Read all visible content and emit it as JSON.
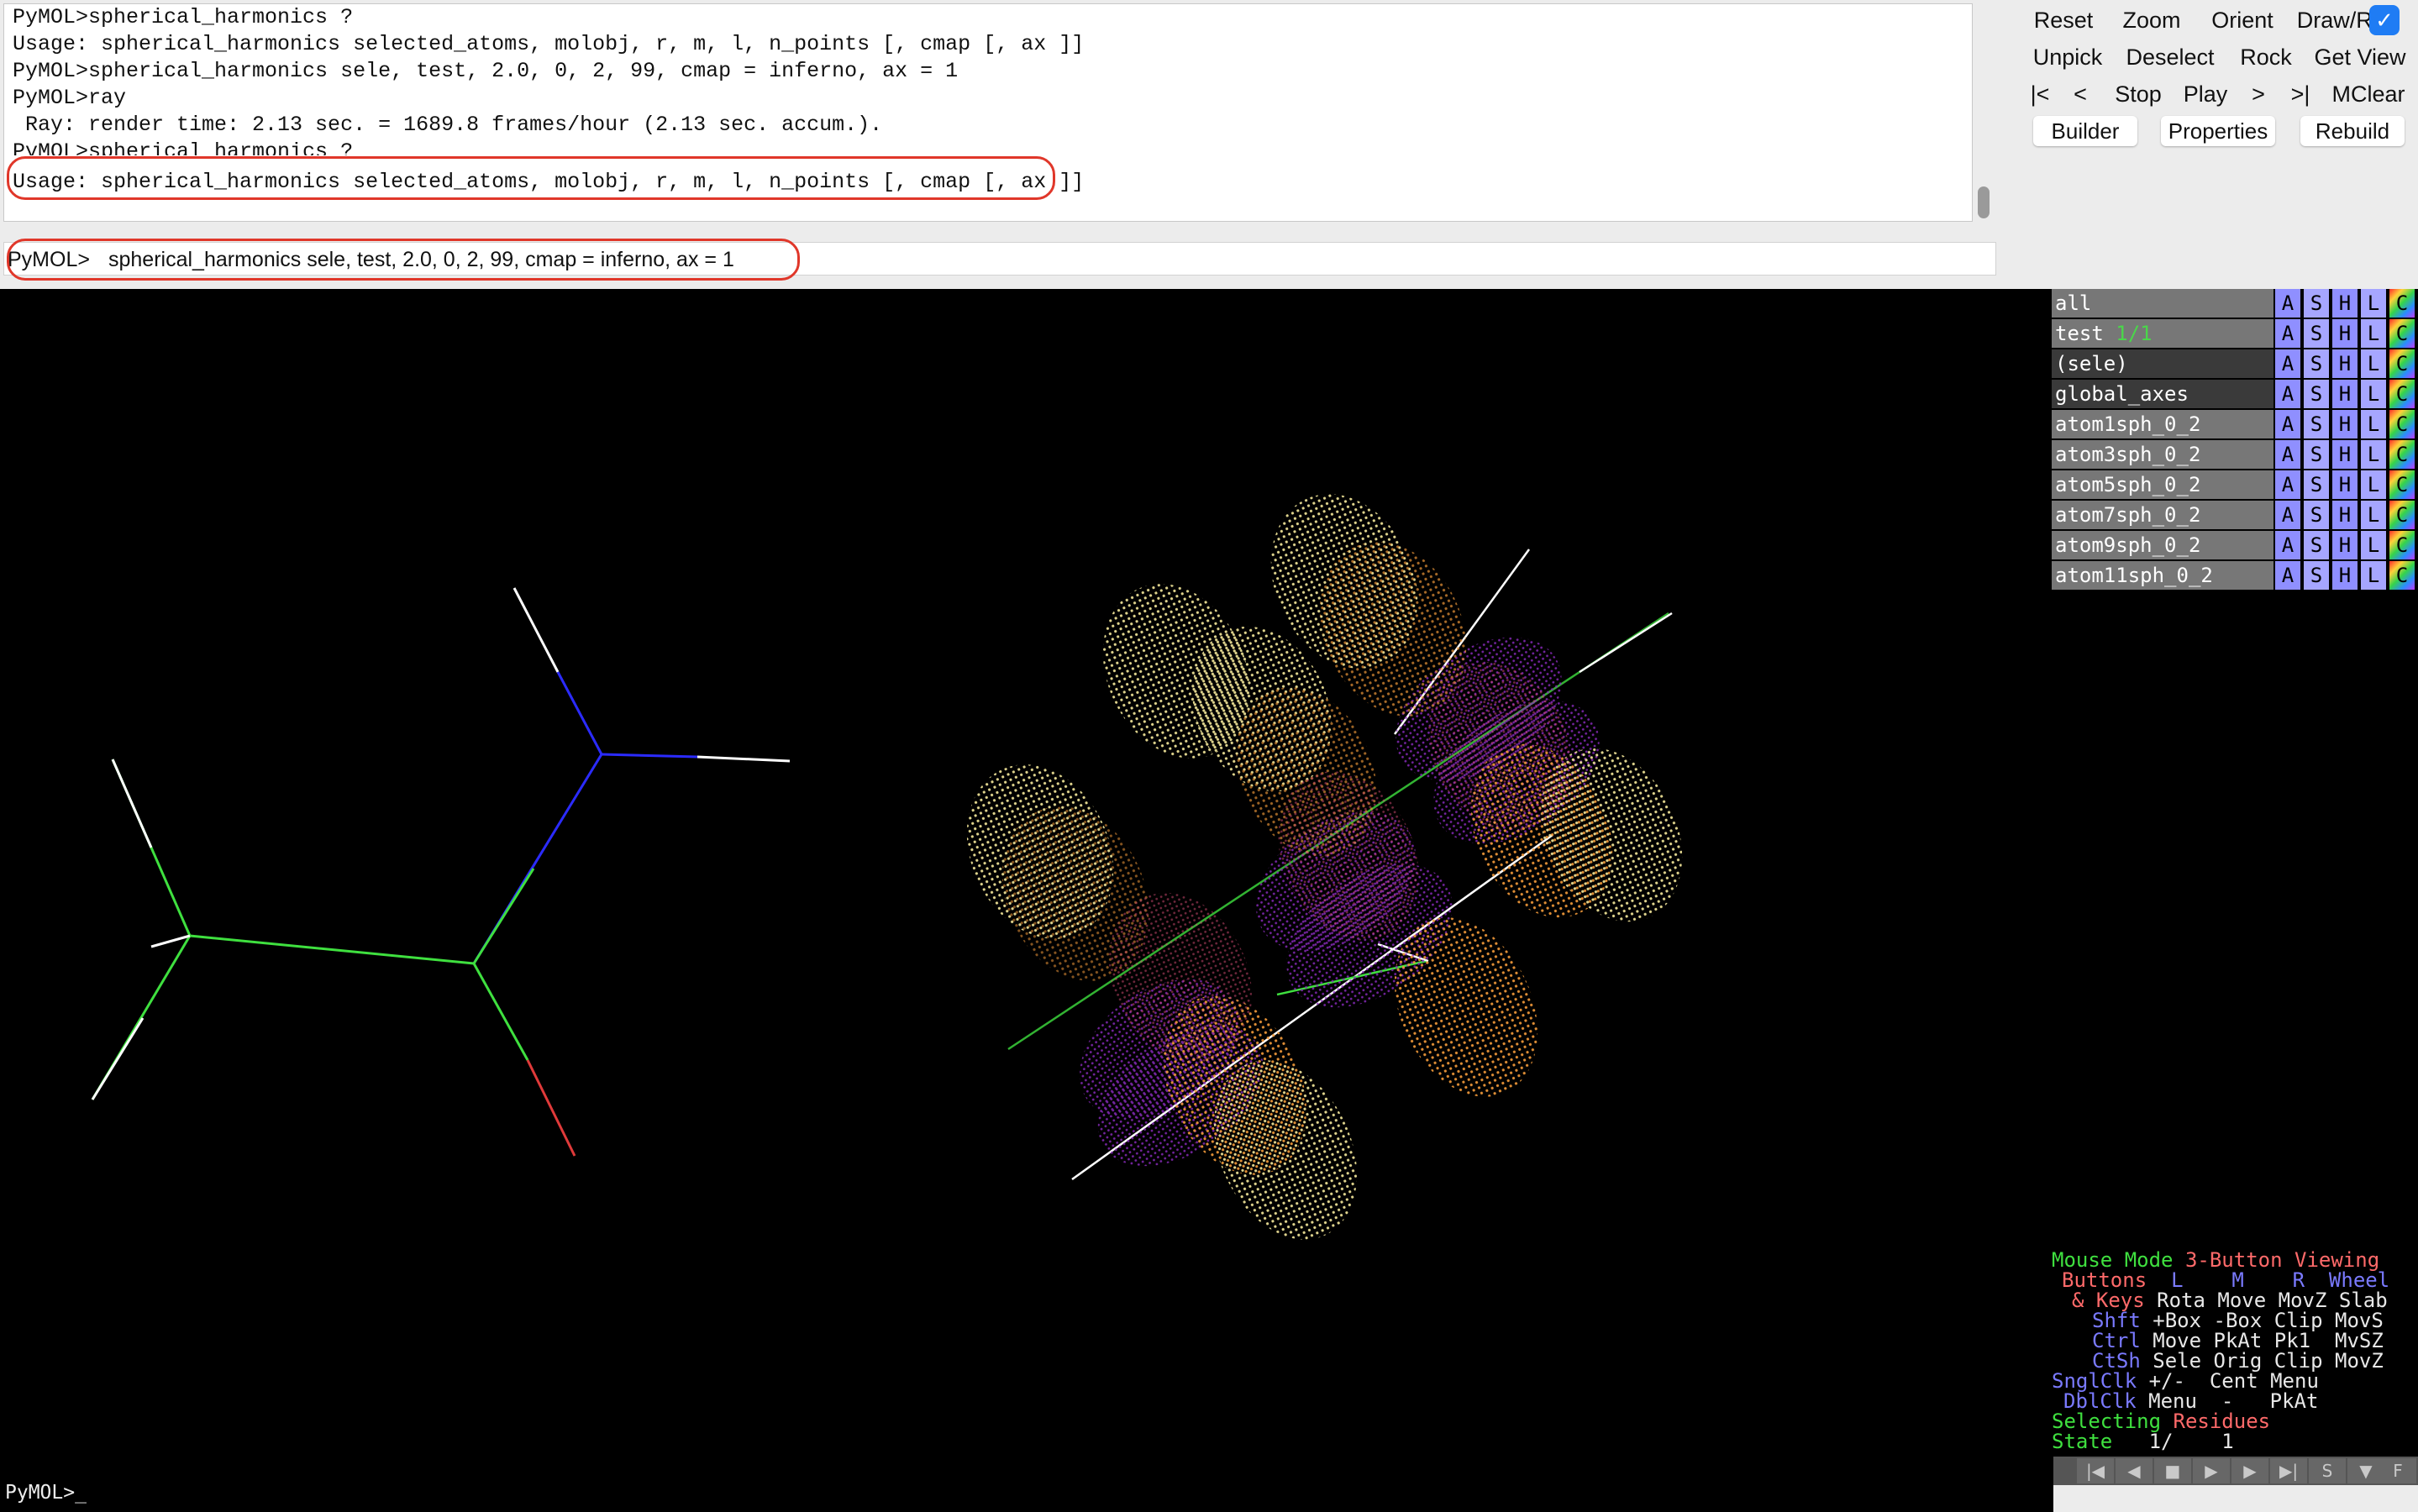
{
  "log": {
    "lines": [
      "PyMOL>spherical_harmonics ?",
      "Usage: spherical_harmonics selected_atoms, molobj, r, m, l, n_points [, cmap [, ax ]]",
      "PyMOL>spherical_harmonics sele, test, 2.0, 0, 2, 99, cmap = inferno, ax = 1",
      "PyMOL>ray",
      " Ray: render time: 2.13 sec. = 1689.8 frames/hour (2.13 sec. accum.).",
      "PyMOL>spherical_harmonics ?",
      "Usage: spherical_harmonics selected_atoms, molobj, r, m, l, n_points [, cmap [, ax ]]"
    ]
  },
  "command": {
    "prompt": "PyMOL>",
    "value": "spherical_harmonics sele, test, 2.0, 0, 2, 99, cmap = inferno, ax = 1"
  },
  "panel": {
    "row1": [
      "Reset",
      "Zoom",
      "Orient",
      "Draw/Ray"
    ],
    "row2": [
      "Unpick",
      "Deselect",
      "Rock",
      "Get View"
    ],
    "row3": [
      "|<",
      "<",
      "Stop",
      "Play",
      ">",
      ">|",
      "MClear"
    ],
    "row4": [
      "Builder",
      "Properties",
      "Rebuild"
    ],
    "toggle_mark": "✓"
  },
  "objects": {
    "rows": [
      {
        "name": "all",
        "state": ""
      },
      {
        "name": "test",
        "state": "1/1"
      },
      {
        "name": "(sele)",
        "state": ""
      },
      {
        "name": "global_axes",
        "state": ""
      },
      {
        "name": "atom1sph_0_2",
        "state": ""
      },
      {
        "name": "atom3sph_0_2",
        "state": ""
      },
      {
        "name": "atom5sph_0_2",
        "state": ""
      },
      {
        "name": "atom7sph_0_2",
        "state": ""
      },
      {
        "name": "atom9sph_0_2",
        "state": ""
      },
      {
        "name": "atom11sph_0_2",
        "state": ""
      }
    ],
    "buttons": [
      "A",
      "S",
      "H",
      "L",
      "C"
    ]
  },
  "mouse_mode": {
    "title_a": "Mouse Mode",
    "title_b": "3-Button Viewing",
    "buttons_label": "Buttons",
    "col_l": "L",
    "col_m": "M",
    "col_r": "R",
    "col_wheel": "Wheel",
    "keys_label": "& Keys",
    "keys_vals": "Rota Move MovZ Slab",
    "shft_label": "Shft",
    "shft_vals": "+Box -Box Clip MovS",
    "ctrl_label": "Ctrl",
    "ctrl_vals": "Move PkAt Pk1  MvSZ",
    "ctsh_label": "CtSh",
    "ctsh_vals": "Sele Orig Clip MovZ",
    "sngl_label": "SnglClk",
    "sngl_vals": "+/-  Cent Menu",
    "dbl_label": "DblClk",
    "dbl_vals": "Menu  -   PkAt",
    "selecting_a": "Selecting",
    "selecting_b": "Residues",
    "state_label": "State",
    "state_value": "1/    1"
  },
  "transport": [
    "|◀",
    "◀",
    "■",
    "▶",
    "▶",
    "▶|",
    "S",
    "▼",
    "F"
  ],
  "bottom_prompt": "PyMOL>_",
  "colors": {
    "bond_green": "#3fe03f",
    "bond_blue": "#2b2bff",
    "bond_red": "#e03a3a",
    "bond_white": "#ffffff",
    "lobe_yellow": "#f2e48a",
    "lobe_orange": "#f29a3a",
    "lobe_purple": "#8a2bbd",
    "highlight_red": "#e0372a"
  }
}
